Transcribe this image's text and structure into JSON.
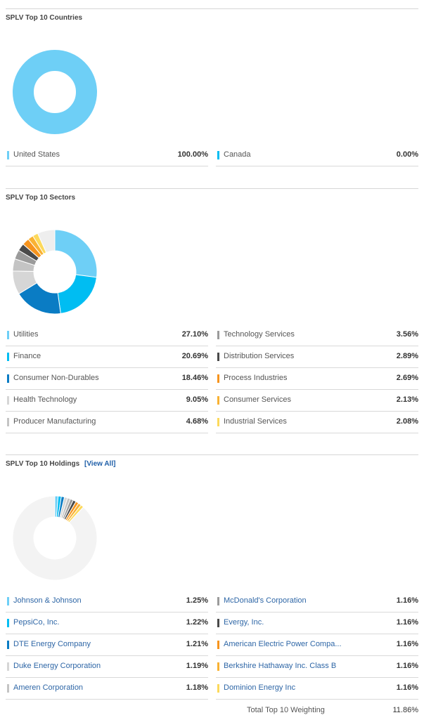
{
  "countries": {
    "title": "SPLV Top 10 Countries",
    "chart_data": {
      "type": "pie",
      "categories": [
        "United States",
        "Canada"
      ],
      "values": [
        100.0,
        0.0
      ],
      "colors": [
        "#6ecff6",
        "#00bdf2"
      ]
    },
    "left": [
      {
        "name": "United States",
        "value": "100.00%",
        "color": "#6ecff6"
      }
    ],
    "right": [
      {
        "name": "Canada",
        "value": "0.00%",
        "color": "#00bdf2"
      }
    ]
  },
  "sectors": {
    "title": "SPLV Top 10 Sectors",
    "chart_data": {
      "type": "pie",
      "categories": [
        "Utilities",
        "Finance",
        "Consumer Non-Durables",
        "Health Technology",
        "Producer Manufacturing",
        "Technology Services",
        "Distribution Services",
        "Process Industries",
        "Consumer Services",
        "Industrial Services",
        "Other"
      ],
      "values": [
        27.1,
        20.69,
        18.46,
        9.05,
        4.68,
        3.56,
        2.89,
        2.69,
        2.13,
        2.08,
        6.67
      ],
      "colors": [
        "#6ecff6",
        "#00bdf2",
        "#0a7cc4",
        "#d6d6d6",
        "#c4c4c4",
        "#9b9b9b",
        "#4a4a4a",
        "#f7941d",
        "#f9b233",
        "#fcd95b",
        "#eeeeee"
      ]
    },
    "left": [
      {
        "name": "Utilities",
        "value": "27.10%",
        "color": "#6ecff6"
      },
      {
        "name": "Finance",
        "value": "20.69%",
        "color": "#00bdf2"
      },
      {
        "name": "Consumer Non-Durables",
        "value": "18.46%",
        "color": "#0a7cc4"
      },
      {
        "name": "Health Technology",
        "value": "9.05%",
        "color": "#d6d6d6"
      },
      {
        "name": "Producer Manufacturing",
        "value": "4.68%",
        "color": "#c4c4c4"
      }
    ],
    "right": [
      {
        "name": "Technology Services",
        "value": "3.56%",
        "color": "#9b9b9b"
      },
      {
        "name": "Distribution Services",
        "value": "2.89%",
        "color": "#4a4a4a"
      },
      {
        "name": "Process Industries",
        "value": "2.69%",
        "color": "#f7941d"
      },
      {
        "name": "Consumer Services",
        "value": "2.13%",
        "color": "#f9b233"
      },
      {
        "name": "Industrial Services",
        "value": "2.08%",
        "color": "#fcd95b"
      }
    ]
  },
  "holdings": {
    "title": "SPLV Top 10 Holdings",
    "view_all": "[View All]",
    "total_label": "Total Top 10 Weighting",
    "total_value": "11.86%",
    "chart_data": {
      "type": "pie",
      "categories": [
        "Johnson & Johnson",
        "PepsiCo, Inc.",
        "DTE Energy Company",
        "Duke Energy Corporation",
        "Ameren Corporation",
        "McDonald's Corporation",
        "Evergy, Inc.",
        "American Electric Power Compa...",
        "Berkshire Hathaway Inc. Class B",
        "Dominion Energy Inc",
        "Other"
      ],
      "values": [
        1.25,
        1.22,
        1.21,
        1.19,
        1.18,
        1.16,
        1.16,
        1.16,
        1.16,
        1.16,
        88.14
      ],
      "colors": [
        "#6ecff6",
        "#00bdf2",
        "#0a7cc4",
        "#d6d6d6",
        "#c4c4c4",
        "#9b9b9b",
        "#4a4a4a",
        "#f7941d",
        "#f9b233",
        "#fcd95b",
        "#f3f3f3"
      ]
    },
    "left": [
      {
        "name": "Johnson & Johnson",
        "value": "1.25%",
        "color": "#6ecff6"
      },
      {
        "name": "PepsiCo, Inc.",
        "value": "1.22%",
        "color": "#00bdf2"
      },
      {
        "name": "DTE Energy Company",
        "value": "1.21%",
        "color": "#0a7cc4"
      },
      {
        "name": "Duke Energy Corporation",
        "value": "1.19%",
        "color": "#d6d6d6"
      },
      {
        "name": "Ameren Corporation",
        "value": "1.18%",
        "color": "#c4c4c4"
      }
    ],
    "right": [
      {
        "name": "McDonald's Corporation",
        "value": "1.16%",
        "color": "#9b9b9b"
      },
      {
        "name": "Evergy, Inc.",
        "value": "1.16%",
        "color": "#4a4a4a"
      },
      {
        "name": "American Electric Power Compa...",
        "value": "1.16%",
        "color": "#f7941d"
      },
      {
        "name": "Berkshire Hathaway Inc. Class B",
        "value": "1.16%",
        "color": "#f9b233"
      },
      {
        "name": "Dominion Energy Inc",
        "value": "1.16%",
        "color": "#fcd95b"
      }
    ]
  }
}
